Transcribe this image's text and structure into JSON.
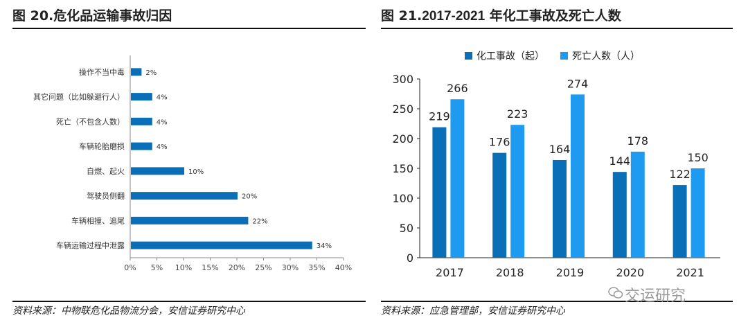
{
  "left": {
    "title": "图 20.危化品运输事故归因",
    "source": "资料来源：中物联危化品物流分会，安信证券研究中心"
  },
  "right": {
    "title_prefix": "图 21.",
    "title_bold": "2017-2021",
    "title_suffix": " 年化工事故及死亡人数",
    "source": "资料来源：应急管理部，安信证券研究中心"
  },
  "watermark": {
    "text": "交运研究",
    "icon": "wechat-icon"
  },
  "colors": {
    "bar_primary": "#0b6fb8",
    "bar_secondary": "#1e9bf0",
    "axis": "#888888"
  },
  "chart_data": [
    {
      "type": "bar",
      "orientation": "horizontal",
      "categories": [
        "操作不当中毒",
        "其它问题（比如躲避行人）",
        "死亡（不包含人数）",
        "车辆轮胎磨损",
        "自燃、起火",
        "驾驶员侧翻",
        "车辆相撞、追尾",
        "车辆运输过程中泄露"
      ],
      "values": [
        2,
        4,
        4,
        4,
        10,
        20,
        22,
        34
      ],
      "value_labels": [
        "2%",
        "4%",
        "4%",
        "4%",
        "10%",
        "20%",
        "22%",
        "34%"
      ],
      "xticks": [
        "0%",
        "5%",
        "10%",
        "15%",
        "20%",
        "25%",
        "30%",
        "35%",
        "40%"
      ],
      "xlim": [
        0,
        40
      ],
      "grid": false
    },
    {
      "type": "bar",
      "categories": [
        "2017",
        "2018",
        "2019",
        "2020",
        "2021"
      ],
      "series": [
        {
          "name": "化工事故（起）",
          "values": [
            219,
            176,
            164,
            144,
            122
          ]
        },
        {
          "name": "死亡人数（人）",
          "values": [
            266,
            223,
            274,
            178,
            150
          ]
        }
      ],
      "yticks": [
        "0",
        "50",
        "100",
        "150",
        "200",
        "250",
        "300"
      ],
      "ylim": [
        0,
        300
      ],
      "legend": "top-center",
      "grid": false
    }
  ]
}
